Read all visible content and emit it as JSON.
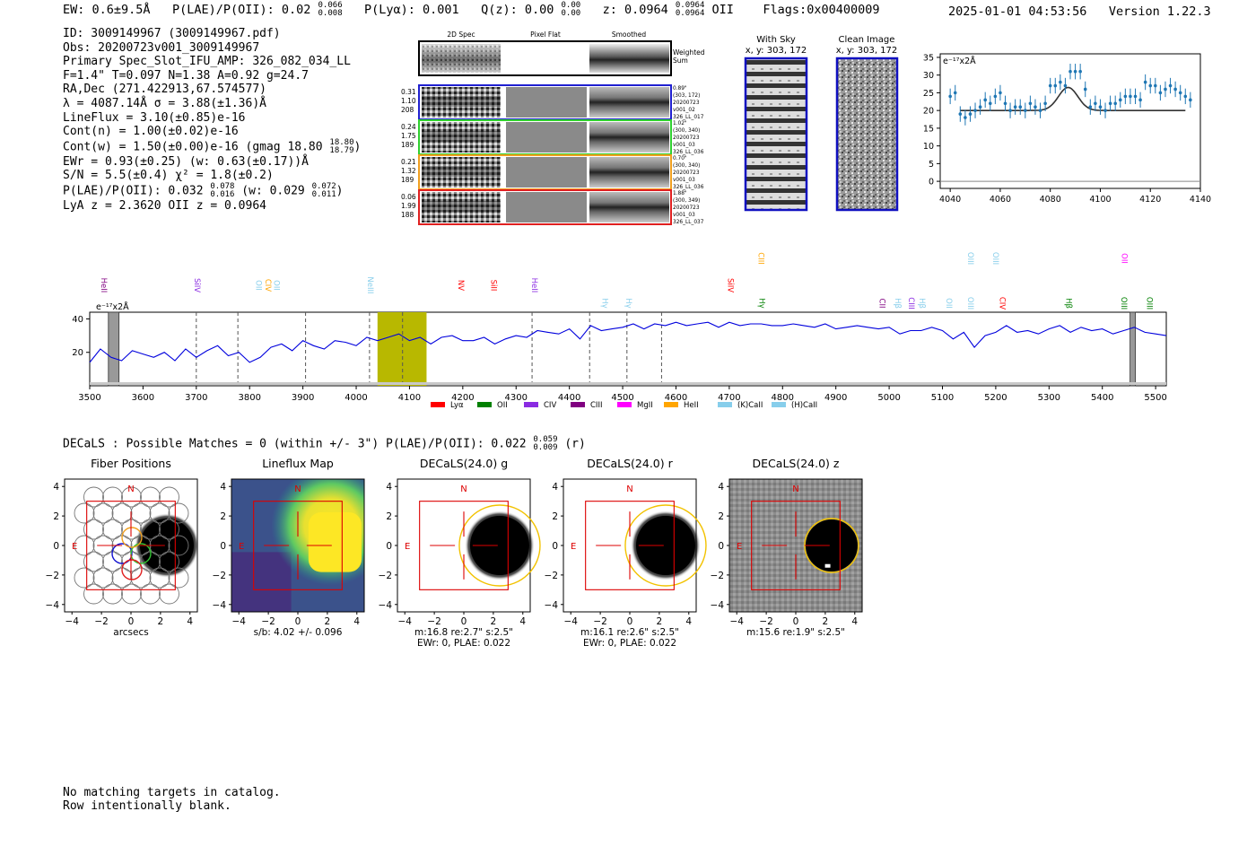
{
  "header": {
    "ew": "EW: 0.6±9.5Å",
    "plae_label": "P(LAE)/P(OII): 0.02",
    "plae_hi": "0.066",
    "plae_lo": "0.008",
    "plya": "P(Lyα): 0.001",
    "qz_label": "Q(z): 0.00",
    "qz_hi": "0.00",
    "qz_lo": "0.00",
    "z_label": "z: 0.0964",
    "z_hi": "0.0964",
    "z_lo": "0.0964",
    "z_line": "OII",
    "flags": "Flags:0x00400009",
    "timestamp": "2025-01-01 04:53:56",
    "version": "Version 1.22.3"
  },
  "info": {
    "id": "ID: 3009149967 (3009149967.pdf)",
    "obs": "Obs: 20200723v001_3009149967",
    "slot": "Primary Spec_Slot_IFU_AMP: 326_082_034_LL",
    "fiber": "F=1.4\"  T=0.097  N=1.38  A=0.92  g=24.7",
    "radec": "RA,Dec (271.422913,67.574577)",
    "lambda": "λ = 4087.14Å  σ = 3.88(±1.36)Å",
    "lineflux": "LineFlux = 3.10(±0.85)e-16",
    "contn": "Cont(n) = 1.00(±0.02)e-16",
    "contw": "Cont(w) = 1.50(±0.00)e-16 (gmag 18.80",
    "contw_hi": "18.80",
    "contw_lo": "18.79",
    "contw_close": ")",
    "ewr": "EWr = 0.93(±0.25) (w: 0.63(±0.17))Å",
    "sn": "S/N = 5.5(±0.4)  χ² = 1.8(±0.2)",
    "plae": "P(LAE)/P(OII): 0.032",
    "plae_hi": "0.078",
    "plae_lo": "0.016",
    "plae_w": "(w: 0.029",
    "plae_w_hi": "0.072",
    "plae_w_lo": "0.011",
    "plae_w_close": ")",
    "lya": "LyA z = 2.3620  OII z = 0.0964"
  },
  "cutouts": {
    "col_labels": [
      "2D Spec",
      "Pixel Flat",
      "Smoothed"
    ],
    "weighted_sum": [
      "Weighted",
      "Sum"
    ],
    "rows": [
      {
        "color": "#2020d0",
        "left": [
          "0.31",
          "1.10",
          "208"
        ],
        "right": [
          "0.89\"",
          "(303, 172)",
          "20200723",
          "v001_02",
          "326_LL_017"
        ]
      },
      {
        "color": "#30d030",
        "left": [
          "0.24",
          "1.75",
          "189"
        ],
        "right": [
          "1.02\"",
          "(300, 340)",
          "20200723",
          "v001_03",
          "326_LL_036"
        ]
      },
      {
        "color": "#f0a020",
        "left": [
          "0.21",
          "1.32",
          "189"
        ],
        "right": [
          "0.70\"",
          "(300, 340)",
          "20200723",
          "v001_03",
          "326_LL_036"
        ]
      },
      {
        "color": "#e02020",
        "left": [
          "0.06",
          "1.99",
          "188"
        ],
        "right": [
          "1.88\"",
          "(300, 349)",
          "20200723",
          "v001_03",
          "326_LL_037"
        ]
      }
    ]
  },
  "sky_panels": {
    "with_sky": {
      "title": "With Sky",
      "coords": "x, y: 303, 172"
    },
    "clean": {
      "title": "Clean Image",
      "coords": "x, y: 303, 172"
    }
  },
  "decals_line": {
    "text": "DECaLS : Possible Matches = 0 (within +/- 3\")  P(LAE)/P(OII): 0.022",
    "hi": "0.059",
    "lo": "0.009",
    "tail": "(r)"
  },
  "images": {
    "panels": [
      {
        "title": "Fiber Positions",
        "caption1": "arcsecs",
        "caption2": "",
        "style": "fiber"
      },
      {
        "title": "Lineflux Map",
        "caption1": "s/b: 4.02 +/- 0.096",
        "caption2": "",
        "style": "lineflux"
      },
      {
        "title": "DECaLS(24.0) g",
        "caption1": "m:16.8  re:2.7\"  s:2.5\"",
        "caption2": "EWr: 0, PLAE: 0.022",
        "style": "decals"
      },
      {
        "title": "DECaLS(24.0) r",
        "caption1": "m:16.1  re:2.6\"  s:2.5\"",
        "caption2": "EWr: 0, PLAE: 0.022",
        "style": "decals"
      },
      {
        "title": "DECaLS(24.0) z",
        "caption1": "m:15.6  re:1.9\"  s:2.5\"",
        "caption2": "",
        "style": "decalsz"
      }
    ],
    "axis_ticks": [
      "−4",
      "−2",
      "0",
      "2",
      "4"
    ],
    "north_label": "N",
    "east_label": "E"
  },
  "catalog": {
    "line1": "No matching targets in catalog.",
    "line2": "Row intentionally blank."
  },
  "colors": {
    "spectrum": "#0000dd",
    "model": "#333333",
    "zoom_points": "#1f77b4",
    "highlight": "#b8b800",
    "lya": "#ff0000",
    "oii": "#008000",
    "civ": "#8a2be2",
    "ciii": "#800080",
    "mgii": "#ff00ff",
    "heii": "#ffa500",
    "kcaii": "#87ceeb",
    "hcaii": "#87ceeb"
  },
  "chart_data": [
    {
      "id": "zoom",
      "type": "scatter",
      "title": "",
      "ylabel": "e⁻¹⁷x2Å",
      "xlim": [
        4036,
        4140
      ],
      "ylim": [
        -2,
        36
      ],
      "xticks": [
        4040,
        4060,
        4080,
        4100,
        4120,
        4140
      ],
      "yticks": [
        0,
        5,
        10,
        15,
        20,
        25,
        30,
        35
      ],
      "x": [
        4040,
        4042,
        4044,
        4046,
        4048,
        4050,
        4052,
        4054,
        4056,
        4058,
        4060,
        4062,
        4064,
        4066,
        4068,
        4070,
        4072,
        4074,
        4076,
        4078,
        4080,
        4082,
        4084,
        4086,
        4088,
        4090,
        4092,
        4094,
        4096,
        4098,
        4100,
        4102,
        4104,
        4106,
        4108,
        4110,
        4112,
        4114,
        4116,
        4118,
        4120,
        4122,
        4124,
        4126,
        4128,
        4130,
        4132,
        4134,
        4136
      ],
      "y": [
        24,
        25,
        19,
        18,
        19,
        20,
        21,
        23,
        22,
        24,
        25,
        22,
        20,
        21,
        21,
        20,
        22,
        21,
        20,
        22,
        27,
        27,
        28,
        27,
        31,
        31,
        31,
        26,
        21,
        22,
        21,
        20,
        22,
        22,
        23,
        24,
        24,
        24,
        23,
        28,
        27,
        27,
        25,
        26,
        27,
        26,
        25,
        24,
        23
      ],
      "yerr": 2.2,
      "model": {
        "continuum": 20.0,
        "amplitude": 6.5,
        "center": 4087.14,
        "sigma": 3.88,
        "x_start": 4044,
        "x_end": 4134
      }
    },
    {
      "id": "spectrum",
      "type": "line",
      "xlim": [
        3500,
        5520
      ],
      "ylim": [
        0,
        44
      ],
      "xticks": [
        3500,
        3600,
        3700,
        3800,
        3900,
        4000,
        4100,
        4200,
        4300,
        4400,
        4500,
        4600,
        4700,
        4800,
        4900,
        5000,
        5100,
        5200,
        5300,
        5400,
        5500
      ],
      "yticks": [
        20,
        40
      ],
      "ylabel": "e⁻¹⁷x2Å",
      "highlight_range": [
        4040,
        4132
      ],
      "gray_bars": [
        [
          3535,
          3555
        ],
        [
          5452,
          5462
        ]
      ],
      "dashed_lines": [
        3700,
        3778,
        3905,
        4025,
        4087,
        4330,
        4438,
        4508,
        4573
      ],
      "series": {
        "x": [
          3500,
          3520,
          3540,
          3560,
          3580,
          3600,
          3620,
          3640,
          3660,
          3680,
          3700,
          3720,
          3740,
          3760,
          3780,
          3800,
          3820,
          3840,
          3860,
          3880,
          3900,
          3920,
          3940,
          3960,
          3980,
          4000,
          4020,
          4040,
          4060,
          4080,
          4100,
          4120,
          4140,
          4160,
          4180,
          4200,
          4220,
          4240,
          4260,
          4280,
          4300,
          4320,
          4340,
          4360,
          4380,
          4400,
          4420,
          4440,
          4460,
          4480,
          4500,
          4520,
          4540,
          4560,
          4580,
          4600,
          4620,
          4640,
          4660,
          4680,
          4700,
          4720,
          4740,
          4760,
          4780,
          4800,
          4820,
          4840,
          4860,
          4880,
          4900,
          4920,
          4940,
          4960,
          4980,
          5000,
          5020,
          5040,
          5060,
          5080,
          5100,
          5120,
          5140,
          5160,
          5180,
          5200,
          5220,
          5240,
          5260,
          5280,
          5300,
          5320,
          5340,
          5360,
          5380,
          5400,
          5420,
          5440,
          5460,
          5480,
          5500,
          5520
        ],
        "y": [
          14,
          22,
          17,
          15,
          21,
          19,
          17,
          20,
          15,
          22,
          17,
          21,
          24,
          18,
          20,
          14,
          17,
          23,
          25,
          21,
          27,
          24,
          22,
          27,
          26,
          24,
          29,
          27,
          29,
          31,
          27,
          29,
          25,
          29,
          30,
          27,
          27,
          29,
          25,
          28,
          30,
          29,
          33,
          32,
          31,
          34,
          28,
          36,
          33,
          34,
          35,
          37,
          34,
          37,
          36,
          38,
          36,
          37,
          38,
          35,
          38,
          36,
          37,
          37,
          36,
          36,
          37,
          36,
          35,
          37,
          34,
          35,
          36,
          35,
          34,
          35,
          31,
          33,
          33,
          35,
          33,
          28,
          32,
          23,
          30,
          32,
          36,
          32,
          33,
          31,
          34,
          36,
          32,
          35,
          33,
          34,
          31,
          33,
          35,
          32,
          31,
          30
        ]
      },
      "legend": [
        "Lyα",
        "OII",
        "CIV",
        "CIII",
        "MgII",
        "HeII",
        "(K)CaII",
        "(H)CaII"
      ],
      "line_labels": [
        {
          "label": "HeII",
          "x": 3522,
          "row": 3,
          "color": "#800080"
        },
        {
          "label": "SiIV",
          "x": 3697,
          "row": 3,
          "color": "#8a2be2"
        },
        {
          "label": "OII",
          "x": 3812,
          "row": 3,
          "color": "#87ceeb"
        },
        {
          "label": "CIV",
          "x": 3830,
          "row": 3,
          "color": "#ffa500"
        },
        {
          "label": "OII",
          "x": 3846,
          "row": 3,
          "color": "#87ceeb"
        },
        {
          "label": "NeIII",
          "x": 4022,
          "row": 3,
          "color": "#87ceeb"
        },
        {
          "label": "NV",
          "x": 4192,
          "row": 3,
          "color": "#ff0000"
        },
        {
          "label": "SiII",
          "x": 4253,
          "row": 3,
          "color": "#ff0000"
        },
        {
          "label": "HeII",
          "x": 4330,
          "row": 3,
          "color": "#8a2be2"
        },
        {
          "label": "Hγ",
          "x": 4462,
          "row": 4,
          "color": "#87ceeb"
        },
        {
          "label": "Hγ",
          "x": 4507,
          "row": 4,
          "color": "#87ceeb"
        },
        {
          "label": "SiIV",
          "x": 4698,
          "row": 3,
          "color": "#ff0000"
        },
        {
          "label": "CIII",
          "x": 4755,
          "row": 1,
          "color": "#ffa500"
        },
        {
          "label": "Hγ",
          "x": 4757,
          "row": 4,
          "color": "#008000"
        },
        {
          "label": "CII",
          "x": 4982,
          "row": 4,
          "color": "#800080"
        },
        {
          "label": "Hβ",
          "x": 5012,
          "row": 4,
          "color": "#87ceeb"
        },
        {
          "label": "CIII",
          "x": 5037,
          "row": 4,
          "color": "#8a2be2"
        },
        {
          "label": "Hβ",
          "x": 5057,
          "row": 4,
          "color": "#87ceeb"
        },
        {
          "label": "OII",
          "x": 5108,
          "row": 4,
          "color": "#87ceeb"
        },
        {
          "label": "OIII",
          "x": 5148,
          "row": 4,
          "color": "#87ceeb"
        },
        {
          "label": "OIII",
          "x": 5148,
          "row": 1,
          "color": "#87ceeb"
        },
        {
          "label": "OIII",
          "x": 5195,
          "row": 1,
          "color": "#87ceeb"
        },
        {
          "label": "CIV",
          "x": 5208,
          "row": 4,
          "color": "#ff0000"
        },
        {
          "label": "Hβ",
          "x": 5332,
          "row": 4,
          "color": "#008000"
        },
        {
          "label": "OII",
          "x": 5437,
          "row": 1,
          "color": "#ff00ff"
        },
        {
          "label": "OIII",
          "x": 5436,
          "row": 4,
          "color": "#008000"
        },
        {
          "label": "OIII",
          "x": 5484,
          "row": 4,
          "color": "#008000"
        }
      ]
    }
  ]
}
